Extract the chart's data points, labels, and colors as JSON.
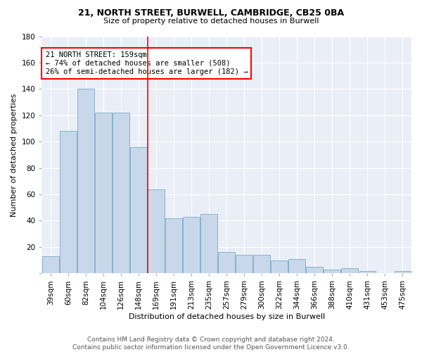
{
  "title1": "21, NORTH STREET, BURWELL, CAMBRIDGE, CB25 0BA",
  "title2": "Size of property relative to detached houses in Burwell",
  "xlabel": "Distribution of detached houses by size in Burwell",
  "ylabel": "Number of detached properties",
  "bar_values": [
    13,
    108,
    140,
    122,
    122,
    96,
    64,
    42,
    43,
    45,
    16,
    14,
    14,
    10,
    11,
    5,
    3,
    4,
    2,
    0,
    2
  ],
  "categories": [
    "39sqm",
    "60sqm",
    "82sqm",
    "104sqm",
    "126sqm",
    "148sqm",
    "169sqm",
    "191sqm",
    "213sqm",
    "235sqm",
    "257sqm",
    "279sqm",
    "300sqm",
    "322sqm",
    "344sqm",
    "366sqm",
    "388sqm",
    "410sqm",
    "431sqm",
    "453sqm",
    "475sqm"
  ],
  "bar_color": "#c8d8ea",
  "bar_edge_color": "#7aaac8",
  "annotation_text": "21 NORTH STREET: 159sqm\n← 74% of detached houses are smaller (508)\n26% of semi-detached houses are larger (182) →",
  "annotation_box_color": "white",
  "annotation_box_edge_color": "red",
  "vline_color": "red",
  "ylim": [
    0,
    180
  ],
  "yticks": [
    0,
    20,
    40,
    60,
    80,
    100,
    120,
    140,
    160,
    180
  ],
  "bg_color": "#eaeff7",
  "footer": "Contains HM Land Registry data © Crown copyright and database right 2024.\nContains public sector information licensed under the Open Government Licence v3.0.",
  "title1_fontsize": 9,
  "title2_fontsize": 8,
  "ylabel_fontsize": 8,
  "xlabel_fontsize": 8,
  "tick_fontsize": 7.5,
  "footer_fontsize": 6.5
}
